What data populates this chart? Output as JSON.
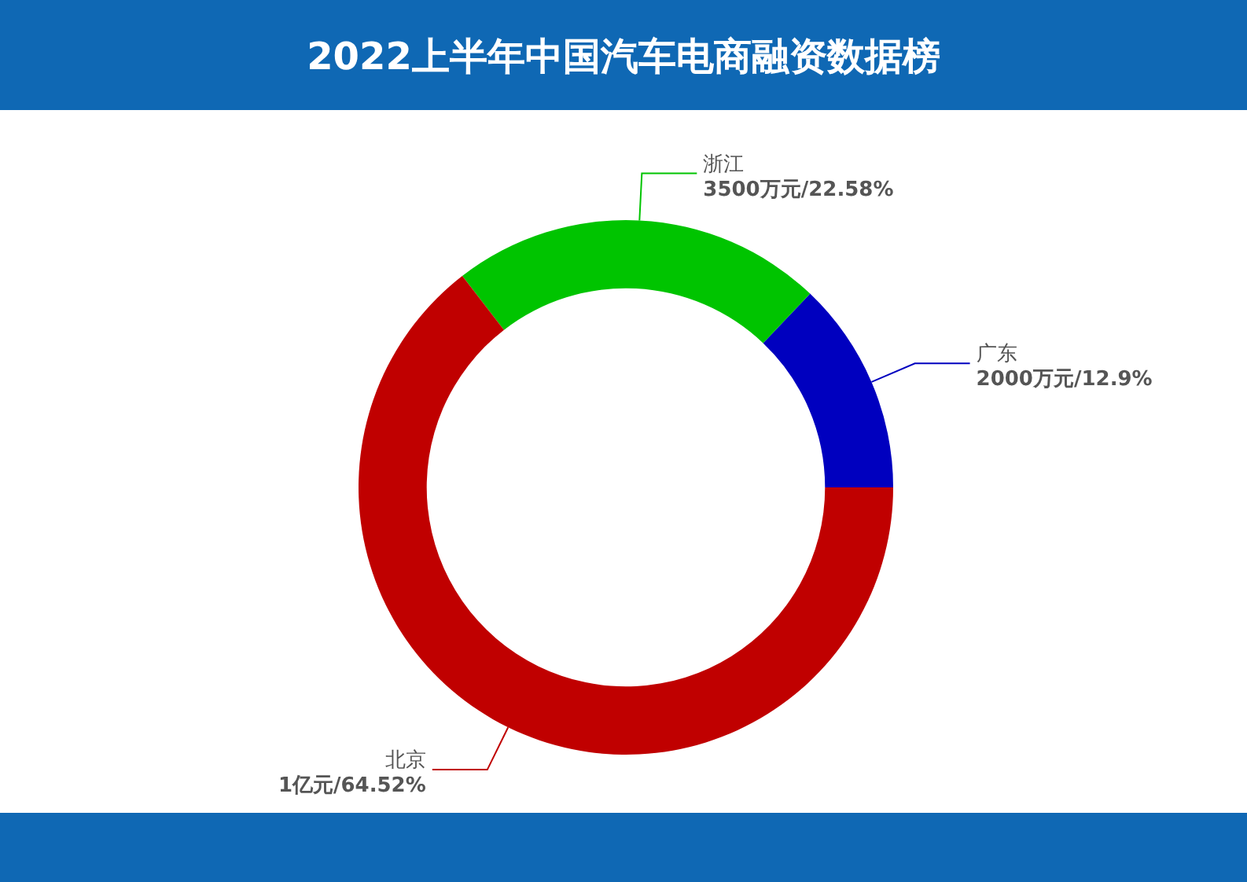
{
  "chart_data": {
    "type": "donut",
    "title": "2022上半年中国汽车电商融资数据榜",
    "categories": [
      "广东",
      "浙江",
      "北京"
    ],
    "values": [
      12.9,
      22.58,
      64.52
    ],
    "value_labels": [
      "2000万元/12.9%",
      "3500万元/22.58%",
      "1亿元/64.52%"
    ],
    "colors": [
      "#0000bf",
      "#00c400",
      "#c00000"
    ]
  }
}
